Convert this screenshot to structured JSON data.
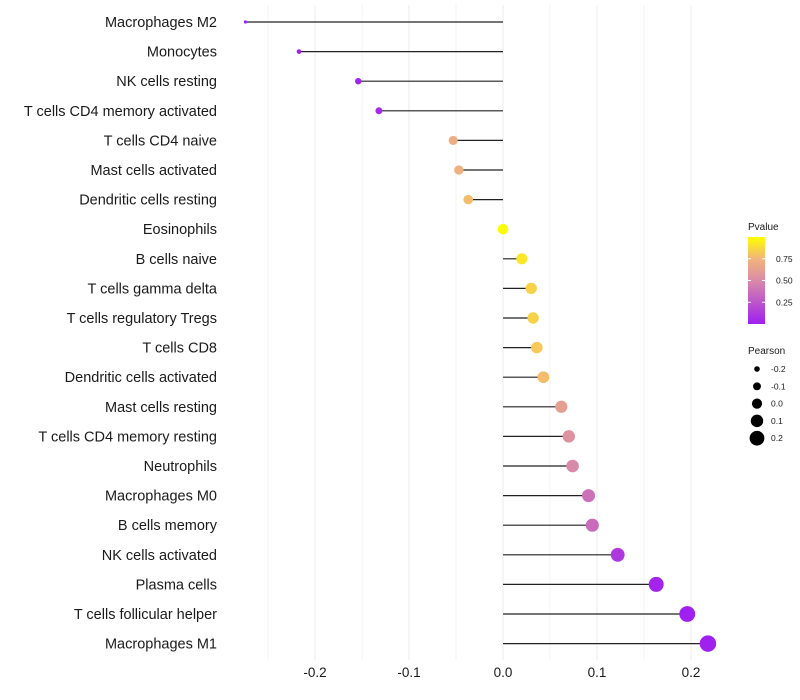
{
  "chart_data": {
    "type": "lollipop",
    "title": "",
    "xlabel": "",
    "ylabel": "",
    "xlim": [
      -0.28,
      0.225
    ],
    "xticks": [
      -0.2,
      -0.1,
      0.0,
      0.1,
      0.2
    ],
    "xtick_labels": [
      "-0.2",
      "-0.1",
      "0.0",
      "0.1",
      "0.2"
    ],
    "grid": true,
    "categories": [
      "Macrophages M2",
      "Monocytes",
      "NK cells resting",
      "T cells CD4 memory activated",
      "T cells CD4 naive",
      "Mast cells activated",
      "Dendritic cells resting",
      "Eosinophils",
      "B cells naive",
      "T cells gamma delta",
      "T cells regulatory  Tregs ",
      "T cells CD8",
      "Dendritic cells activated",
      "Mast cells resting",
      "T cells CD4 memory resting",
      "Neutrophils",
      "Macrophages M0",
      "B cells memory",
      "NK cells activated",
      "Plasma cells",
      "T cells follicular helper",
      "Macrophages M1"
    ],
    "pearson": [
      -0.274,
      -0.217,
      -0.154,
      -0.132,
      -0.053,
      -0.047,
      -0.037,
      0.0,
      0.02,
      0.03,
      0.032,
      0.036,
      0.043,
      0.062,
      0.07,
      0.074,
      0.091,
      0.095,
      0.122,
      0.163,
      0.196,
      0.218
    ],
    "pvalue": [
      0.0,
      0.001,
      0.02,
      0.05,
      0.7,
      0.72,
      0.78,
      0.99,
      0.92,
      0.85,
      0.85,
      0.82,
      0.78,
      0.62,
      0.55,
      0.5,
      0.38,
      0.36,
      0.12,
      0.02,
      0.004,
      0.001
    ],
    "color_legend": {
      "title": "Pvalue",
      "ticks": [
        0.25,
        0.5,
        0.75
      ],
      "tick_labels": [
        "0.25",
        "0.50",
        "0.75"
      ],
      "range": [
        0,
        1
      ],
      "low_color": "#a020f0",
      "high_color": "#ffff00"
    },
    "size_legend": {
      "title": "Pearson",
      "values": [
        -0.2,
        -0.1,
        0.0,
        0.1,
        0.2
      ],
      "labels": [
        "-0.2",
        "-0.1",
        "0.0",
        "0.1",
        "0.2"
      ]
    },
    "legend_position": "right"
  }
}
